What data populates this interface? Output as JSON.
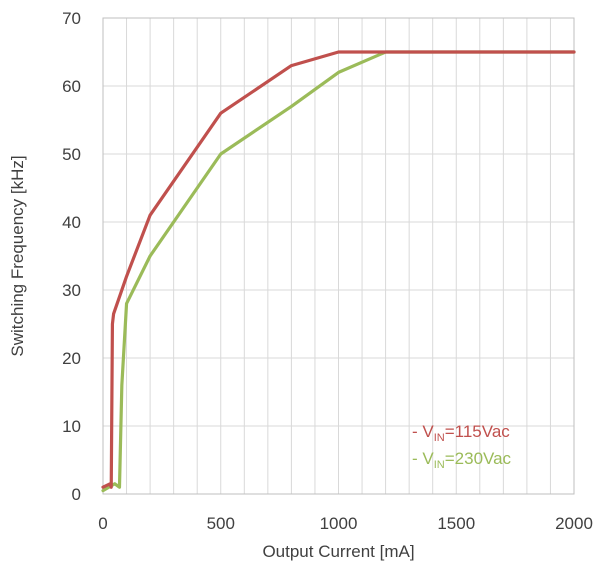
{
  "chart_data": {
    "type": "line",
    "title": "",
    "xlabel": "Output Current [mA]",
    "ylabel": "Switching Frequency [kHz]",
    "xlim": [
      0,
      2000
    ],
    "ylim": [
      0,
      70
    ],
    "x_ticks": [
      0,
      500,
      1000,
      1500,
      2000
    ],
    "y_ticks": [
      0,
      10,
      20,
      30,
      40,
      50,
      60,
      70
    ],
    "x_minor_step": 100,
    "grid": true,
    "legend_position": "bottom-right",
    "series": [
      {
        "name_prefix": "- V",
        "name_sub": "IN",
        "name_suffix": "=115Vac",
        "color": "#c0504d",
        "points": [
          [
            0,
            1
          ],
          [
            30,
            1.5
          ],
          [
            35,
            1
          ],
          [
            40,
            25
          ],
          [
            45,
            26.5
          ],
          [
            100,
            32
          ],
          [
            200,
            41
          ],
          [
            500,
            56
          ],
          [
            800,
            63
          ],
          [
            1000,
            65
          ],
          [
            1200,
            65
          ],
          [
            2000,
            65
          ]
        ]
      },
      {
        "name_prefix": "- V",
        "name_sub": "IN",
        "name_suffix": "=230Vac",
        "color": "#9bbb59",
        "points": [
          [
            0,
            0.5
          ],
          [
            50,
            1.5
          ],
          [
            70,
            1
          ],
          [
            80,
            16
          ],
          [
            100,
            28
          ],
          [
            200,
            35
          ],
          [
            500,
            50
          ],
          [
            800,
            57
          ],
          [
            1000,
            62
          ],
          [
            1200,
            65
          ],
          [
            2000,
            65
          ]
        ]
      }
    ]
  }
}
